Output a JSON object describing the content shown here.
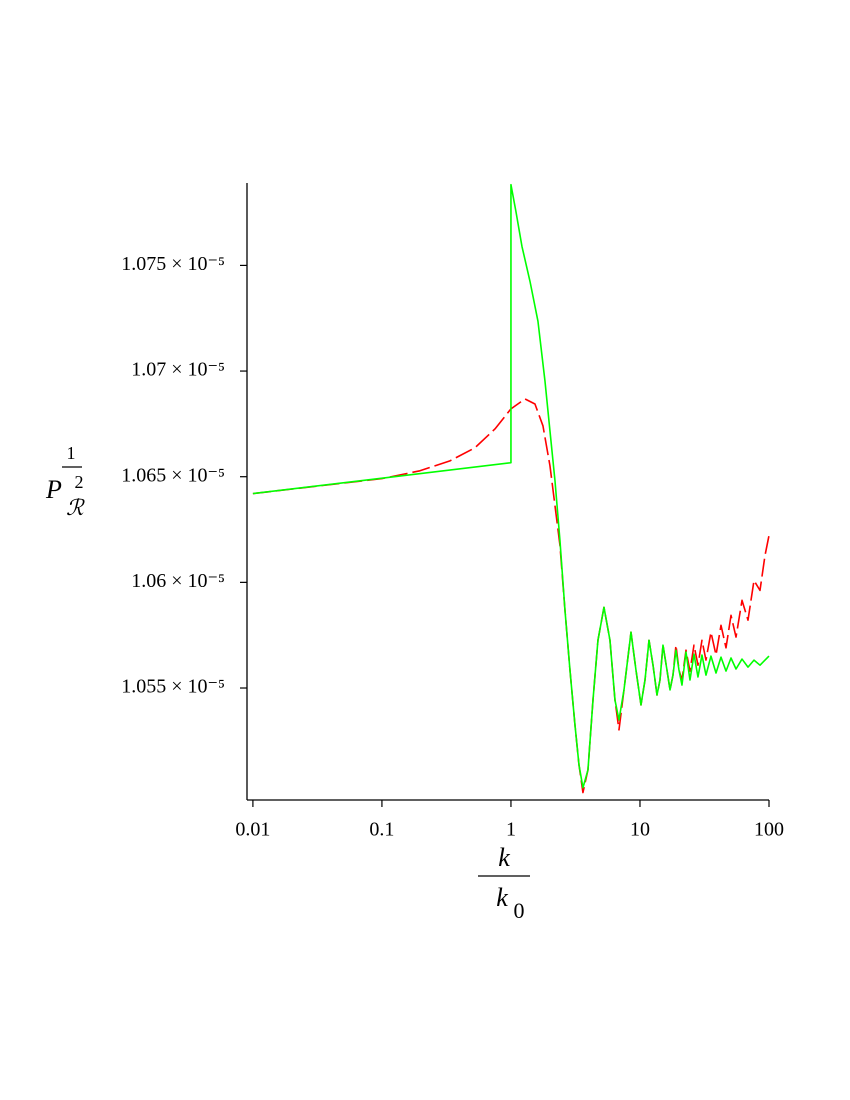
{
  "chart_data": {
    "type": "line",
    "log_x": true,
    "xlim": [
      0.009,
      100
    ],
    "xticks": [
      0.01,
      0.1,
      1,
      10,
      100
    ],
    "ylim": [
      1.0497e-05,
      1.0789e-05
    ],
    "yticks": [
      {
        "value": 1.055e-05,
        "label": "1.055 × 10⁻⁵"
      },
      {
        "value": 1.06e-05,
        "label": "1.06 × 10⁻⁵"
      },
      {
        "value": 1.065e-05,
        "label": "1.065 × 10⁻⁵"
      },
      {
        "value": 1.07e-05,
        "label": "1.07 × 10⁻⁵"
      },
      {
        "value": 1.075e-05,
        "label": "1.075 × 10⁻⁵"
      }
    ],
    "xlabel": {
      "numerator": "k",
      "denominator": "k",
      "denominator_subscript": "0"
    },
    "ylabel": {
      "base": "P",
      "subscript": "ℛ",
      "exponent_numerator": "1",
      "exponent_denominator": "2"
    },
    "series": [
      {
        "color": "#ff0000",
        "dashed": true,
        "x": [
          0.01,
          0.1,
          0.197,
          0.3366,
          0.526,
          0.7516,
          1,
          1.284,
          1.535,
          1.77,
          2.006,
          2.194,
          2.398,
          2.622,
          2.867,
          3.134,
          3.366,
          3.614,
          3.953,
          4.323,
          4.724,
          5.259,
          5.854,
          6.4,
          6.875,
          7.516,
          8.52,
          9.31,
          10.18,
          10.94,
          11.75,
          12.62,
          13.55,
          14.29,
          15.08,
          16.19,
          17.09,
          18.02,
          19.01,
          20.06,
          21.16,
          22.73,
          24.41,
          26.21,
          28.15,
          30.23,
          32.47,
          35.5,
          38.84,
          42.46,
          46.42,
          50.76,
          55.5,
          61.77,
          68.75,
          76.5,
          85.15,
          93.1,
          100
        ],
        "values": [
          1.0642e-05,
          1.06491e-05,
          1.06528e-05,
          1.06575e-05,
          1.06637e-05,
          1.06726e-05,
          1.06821e-05,
          1.06868e-05,
          1.06844e-05,
          1.06741e-05,
          1.06552e-05,
          1.06363e-05,
          1.06175e-05,
          1.05868e-05,
          1.05585e-05,
          1.05325e-05,
          1.05137e-05,
          1.05005e-05,
          1.05113e-05,
          1.05443e-05,
          1.05726e-05,
          1.05882e-05,
          1.05726e-05,
          1.05443e-05,
          1.05302e-05,
          1.05491e-05,
          1.05764e-05,
          1.05585e-05,
          1.0542e-05,
          1.05538e-05,
          1.05726e-05,
          1.05608e-05,
          1.05467e-05,
          1.05538e-05,
          1.05703e-05,
          1.05585e-05,
          1.05491e-05,
          1.05561e-05,
          1.05703e-05,
          1.05585e-05,
          1.05538e-05,
          1.05679e-05,
          1.0558e-05,
          1.05703e-05,
          1.05608e-05,
          1.05726e-05,
          1.05632e-05,
          1.05764e-05,
          1.05656e-05,
          1.05797e-05,
          1.0569e-05,
          1.05844e-05,
          1.05741e-05,
          1.05915e-05,
          1.05821e-05,
          1.06009e-05,
          1.05962e-05,
          1.06127e-05,
          1.06222e-05
        ]
      },
      {
        "color": "#00ff00",
        "dashed": false,
        "x": [
          0.01,
          1,
          1,
          1.093,
          1.217,
          1.404,
          1.619,
          1.835,
          2.006,
          2.194,
          2.398,
          2.622,
          2.867,
          3.134,
          3.366,
          3.614,
          3.953,
          4.323,
          4.724,
          5.259,
          5.854,
          6.4,
          6.875,
          7.516,
          8.52,
          9.31,
          10.18,
          10.94,
          11.75,
          12.62,
          13.55,
          14.29,
          15.08,
          16.19,
          17.09,
          18.02,
          19.01,
          20.06,
          21.16,
          22.73,
          24.41,
          26.21,
          28.15,
          30.23,
          32.47,
          35.5,
          38.84,
          42.46,
          46.42,
          50.76,
          55.5,
          61.77,
          68.75,
          76.5,
          85.15,
          100
        ],
        "values": [
          1.0642e-05,
          1.06566e-05,
          1.07882e-05,
          1.07755e-05,
          1.0759e-05,
          1.07425e-05,
          1.07236e-05,
          1.06953e-05,
          1.06717e-05,
          1.06481e-05,
          1.06198e-05,
          1.05868e-05,
          1.05585e-05,
          1.05325e-05,
          1.05137e-05,
          1.05028e-05,
          1.05113e-05,
          1.05443e-05,
          1.05726e-05,
          1.05882e-05,
          1.05726e-05,
          1.05443e-05,
          1.05349e-05,
          1.05491e-05,
          1.05764e-05,
          1.05585e-05,
          1.0542e-05,
          1.05538e-05,
          1.05726e-05,
          1.05608e-05,
          1.05467e-05,
          1.05538e-05,
          1.05703e-05,
          1.05585e-05,
          1.05491e-05,
          1.05561e-05,
          1.05679e-05,
          1.05585e-05,
          1.05514e-05,
          1.0567e-05,
          1.05538e-05,
          1.0566e-05,
          1.05552e-05,
          1.05656e-05,
          1.05561e-05,
          1.05651e-05,
          1.05571e-05,
          1.05646e-05,
          1.0558e-05,
          1.05642e-05,
          1.0559e-05,
          1.05637e-05,
          1.05599e-05,
          1.05632e-05,
          1.05608e-05,
          1.05651e-05
        ]
      }
    ]
  }
}
